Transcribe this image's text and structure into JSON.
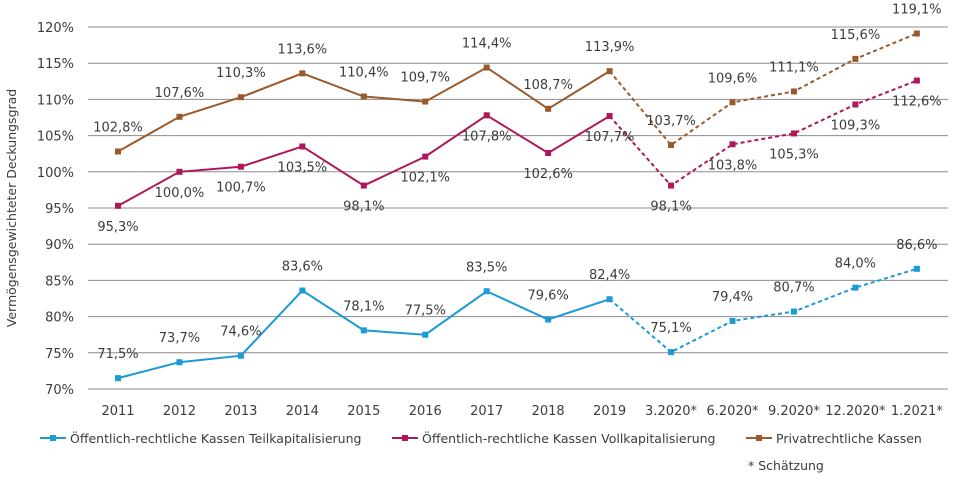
{
  "chart_data": {
    "type": "line",
    "title": "",
    "ylabel": "Vermögensgewichteter Deckungsgrad",
    "xlabel": "",
    "ylim": [
      70,
      120
    ],
    "yticks": [
      "70%",
      "75%",
      "80%",
      "85%",
      "90%",
      "95%",
      "100%",
      "105%",
      "110%",
      "115%",
      "120%"
    ],
    "categories": [
      "2011",
      "2012",
      "2013",
      "2014",
      "2015",
      "2016",
      "2017",
      "2018",
      "2019",
      "3.2020*",
      "6.2020*",
      "9.2020*",
      "12.2020*",
      "1.2021*"
    ],
    "estimated_from_index": 9,
    "grid": true,
    "legend_position": "bottom",
    "series": [
      {
        "name": "Öffentlich-rechtliche Kassen Teilkapitalisierung",
        "color": "#1b9ad6",
        "values": [
          71.5,
          73.7,
          74.6,
          83.6,
          78.1,
          77.5,
          83.5,
          79.6,
          82.4,
          75.1,
          79.4,
          80.7,
          84.0,
          86.6
        ],
        "labels": [
          "71,5%",
          "73,7%",
          "74,6%",
          "83,6%",
          "78,1%",
          "77,5%",
          "83,5%",
          "79,6%",
          "82,4%",
          "75,1%",
          "79,4%",
          "80,7%",
          "84,0%",
          "86,6%"
        ]
      },
      {
        "name": "Öffentlich-rechtliche Kassen Vollkapitalisierung",
        "color": "#b0175a",
        "values": [
          95.3,
          100.0,
          100.7,
          103.5,
          98.1,
          102.1,
          107.8,
          102.6,
          107.7,
          98.1,
          103.8,
          105.3,
          109.3,
          112.6
        ],
        "labels": [
          "95,3%",
          "100,0%",
          "100,7%",
          "103,5%",
          "98,1%",
          "102,1%",
          "107,8%",
          "102,6%",
          "107,7%",
          "98,1%",
          "103,8%",
          "105,3%",
          "109,3%",
          "112,6%"
        ]
      },
      {
        "name": "Privatrechtliche Kassen",
        "color": "#9b5a2c",
        "values": [
          102.8,
          107.6,
          110.3,
          113.6,
          110.4,
          109.7,
          114.4,
          108.7,
          113.9,
          103.7,
          109.6,
          111.1,
          115.6,
          119.1
        ],
        "labels": [
          "102,8%",
          "107,6%",
          "110,3%",
          "113,6%",
          "110,4%",
          "109,7%",
          "114,4%",
          "108,7%",
          "113,9%",
          "103,7%",
          "109,6%",
          "111,1%",
          "115,6%",
          "119,1%"
        ]
      }
    ],
    "footnote": "* Schätzung",
    "gridline_color": "#8c8c8c"
  }
}
